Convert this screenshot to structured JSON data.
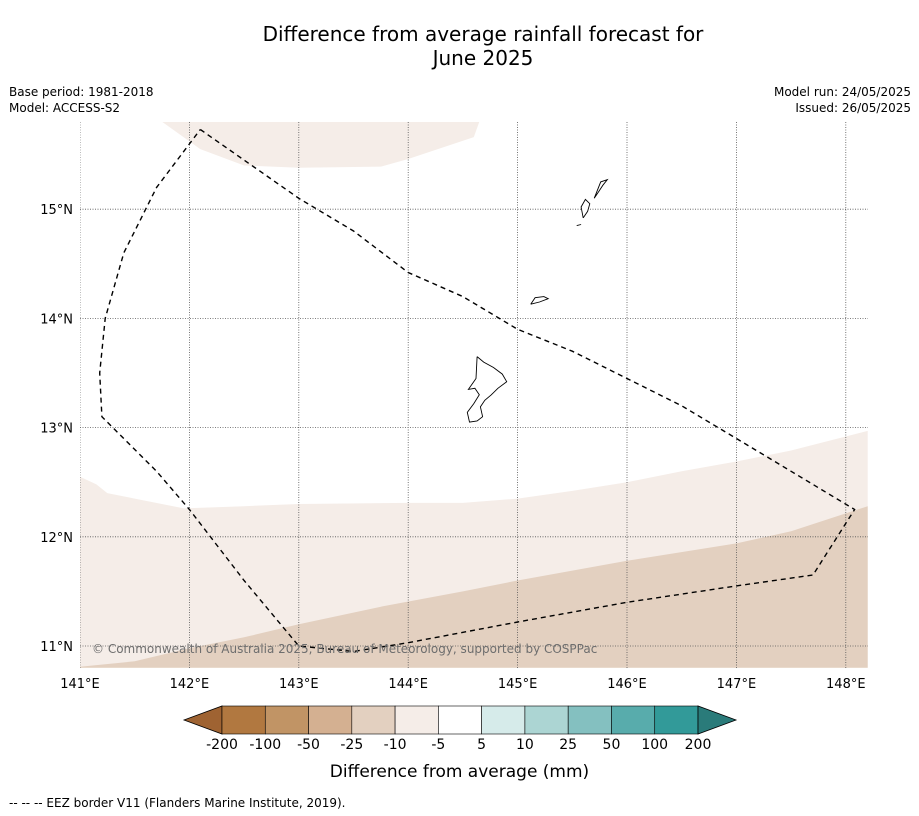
{
  "title_line1": "Difference from average rainfall forecast for",
  "title_line2": "June 2025",
  "meta_left": {
    "base_period": "Base period: 1981-2018",
    "model": "Model: ACCESS-S2"
  },
  "meta_right": {
    "model_run": "Model run: 24/05/2025",
    "issued": "Issued: 26/05/2025"
  },
  "map": {
    "lon_range": [
      141,
      148.2
    ],
    "lat_range": [
      10.8,
      15.8
    ],
    "lon_ticks": [
      {
        "value": 141,
        "label": "141°E"
      },
      {
        "value": 142,
        "label": "142°E"
      },
      {
        "value": 143,
        "label": "143°E"
      },
      {
        "value": 144,
        "label": "144°E"
      },
      {
        "value": 145,
        "label": "145°E"
      },
      {
        "value": 146,
        "label": "146°E"
      },
      {
        "value": 147,
        "label": "147°E"
      },
      {
        "value": 148,
        "label": "148°E"
      }
    ],
    "lat_ticks": [
      {
        "value": 11,
        "label": "11°N"
      },
      {
        "value": 12,
        "label": "12°N"
      },
      {
        "value": 13,
        "label": "13°N"
      },
      {
        "value": 14,
        "label": "14°N"
      },
      {
        "value": 15,
        "label": "15°N"
      }
    ],
    "gridlines": true,
    "copyright": "© Commonwealth of Australia 2025, Bureau of Meteorology, supported by COSPPac",
    "anomaly_regions": [
      {
        "category": "-10 to -5",
        "color": "#f5ede8",
        "polygon": [
          [
            141.75,
            15.8
          ],
          [
            142.1,
            15.55
          ],
          [
            142.5,
            15.4
          ],
          [
            143.0,
            15.38
          ],
          [
            143.75,
            15.39
          ],
          [
            144.0,
            15.46
          ],
          [
            144.6,
            15.66
          ],
          [
            144.65,
            15.8
          ]
        ]
      },
      {
        "category": "-10 to -5",
        "color": "#f5ede8",
        "polygon": [
          [
            141,
            12.55
          ],
          [
            141.15,
            12.48
          ],
          [
            141.25,
            12.4
          ],
          [
            141.5,
            12.35
          ],
          [
            141.95,
            12.26
          ],
          [
            142.5,
            12.28
          ],
          [
            143,
            12.3
          ],
          [
            144,
            12.31
          ],
          [
            144.5,
            12.31
          ],
          [
            145,
            12.35
          ],
          [
            145.5,
            12.42
          ],
          [
            146,
            12.5
          ],
          [
            146.5,
            12.6
          ],
          [
            147,
            12.69
          ],
          [
            147.5,
            12.79
          ],
          [
            148.2,
            12.97
          ],
          [
            148.2,
            10.8
          ],
          [
            141,
            10.8
          ]
        ]
      },
      {
        "category": "-25 to -10",
        "color": "#e3d0c0",
        "polygon": [
          [
            141,
            10.81
          ],
          [
            141.5,
            10.86
          ],
          [
            142,
            10.98
          ],
          [
            142.5,
            11.08
          ],
          [
            143,
            11.2
          ],
          [
            143.75,
            11.36
          ],
          [
            144.5,
            11.5
          ],
          [
            145,
            11.6
          ],
          [
            146,
            11.78
          ],
          [
            147,
            11.94
          ],
          [
            147.5,
            12.05
          ],
          [
            148.2,
            12.28
          ],
          [
            148.2,
            10.8
          ],
          [
            141,
            10.8
          ]
        ]
      }
    ],
    "islands": [
      {
        "name": "Guam",
        "outline": [
          [
            144.63,
            13.65
          ],
          [
            144.69,
            13.6
          ],
          [
            144.78,
            13.55
          ],
          [
            144.86,
            13.49
          ],
          [
            144.9,
            13.42
          ],
          [
            144.82,
            13.36
          ],
          [
            144.76,
            13.3
          ],
          [
            144.7,
            13.25
          ],
          [
            144.66,
            13.19
          ],
          [
            144.68,
            13.1
          ],
          [
            144.63,
            13.06
          ],
          [
            144.56,
            13.05
          ],
          [
            144.54,
            13.14
          ],
          [
            144.6,
            13.22
          ],
          [
            144.65,
            13.3
          ],
          [
            144.61,
            13.36
          ],
          [
            144.55,
            13.35
          ],
          [
            144.62,
            13.45
          ],
          [
            144.63,
            13.65
          ]
        ]
      },
      {
        "name": "Rota",
        "outline": [
          [
            145.12,
            14.13
          ],
          [
            145.2,
            14.15
          ],
          [
            145.28,
            14.18
          ],
          [
            145.24,
            14.2
          ],
          [
            145.16,
            14.19
          ],
          [
            145.12,
            14.13
          ]
        ]
      },
      {
        "name": "Tinian",
        "outline": [
          [
            145.6,
            14.92
          ],
          [
            145.64,
            14.98
          ],
          [
            145.66,
            15.05
          ],
          [
            145.62,
            15.09
          ],
          [
            145.58,
            15.02
          ],
          [
            145.6,
            14.92
          ]
        ]
      },
      {
        "name": "Saipan",
        "outline": [
          [
            145.7,
            15.1
          ],
          [
            145.74,
            15.16
          ],
          [
            145.78,
            15.22
          ],
          [
            145.82,
            15.27
          ],
          [
            145.76,
            15.25
          ],
          [
            145.7,
            15.1
          ]
        ]
      },
      {
        "name": "Aguijan",
        "outline": [
          [
            145.54,
            14.85
          ],
          [
            145.58,
            14.86
          ]
        ]
      }
    ],
    "eez_border": [
      [
        142.1,
        15.73
      ],
      [
        142.5,
        15.45
      ],
      [
        143,
        15.1
      ],
      [
        143.5,
        14.8
      ],
      [
        144,
        14.42
      ],
      [
        144.5,
        14.2
      ],
      [
        145,
        13.9
      ],
      [
        145.5,
        13.7
      ],
      [
        146,
        13.45
      ],
      [
        146.5,
        13.2
      ],
      [
        147,
        12.9
      ],
      [
        147.5,
        12.6
      ],
      [
        148.08,
        12.25
      ],
      [
        147.7,
        11.65
      ],
      [
        147,
        11.55
      ],
      [
        146,
        11.4
      ],
      [
        145,
        11.22
      ],
      [
        144,
        11.03
      ],
      [
        143.5,
        10.95
      ],
      [
        143,
        11.0
      ],
      [
        142.5,
        11.6
      ],
      [
        142,
        12.25
      ],
      [
        141.7,
        12.6
      ],
      [
        141.35,
        12.95
      ],
      [
        141.2,
        13.1
      ],
      [
        141.18,
        13.5
      ],
      [
        141.23,
        14
      ],
      [
        141.4,
        14.6
      ],
      [
        141.7,
        15.2
      ],
      [
        142.1,
        15.73
      ]
    ]
  },
  "colorbar": {
    "colors": [
      "#9f6332",
      "#b17840",
      "#c19465",
      "#d4b091",
      "#e3d0c0",
      "#f5ede8",
      "#ffffff",
      "#d6ebea",
      "#acd5d3",
      "#84c0c0",
      "#58acac",
      "#329a99",
      "#2a7b7a"
    ],
    "tick_labels": [
      "-200",
      "-100",
      "-50",
      "-25",
      "-10",
      "-5",
      "5",
      "10",
      "25",
      "50",
      "100",
      "200"
    ],
    "label": "Difference from average (mm)"
  },
  "footer": "--  --  -- EEZ border V11 (Flanders Marine Institute, 2019)."
}
